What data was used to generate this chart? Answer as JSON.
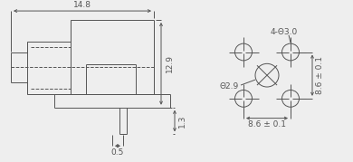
{
  "bg_color": "#eeeeee",
  "line_color": "#555555",
  "font_size": 6.5,
  "left_view": {
    "dim_148_label": "14.8",
    "dim_129_label": "12.9",
    "dim_05_label": "0.5",
    "dim_13_label": "1.3"
  },
  "right_view": {
    "label_holes": "4-Θ3.0",
    "label_center": "Θ2.9",
    "label_h86": "8.6 ± 0.1",
    "label_v86": "8.6 ± 0.1"
  }
}
